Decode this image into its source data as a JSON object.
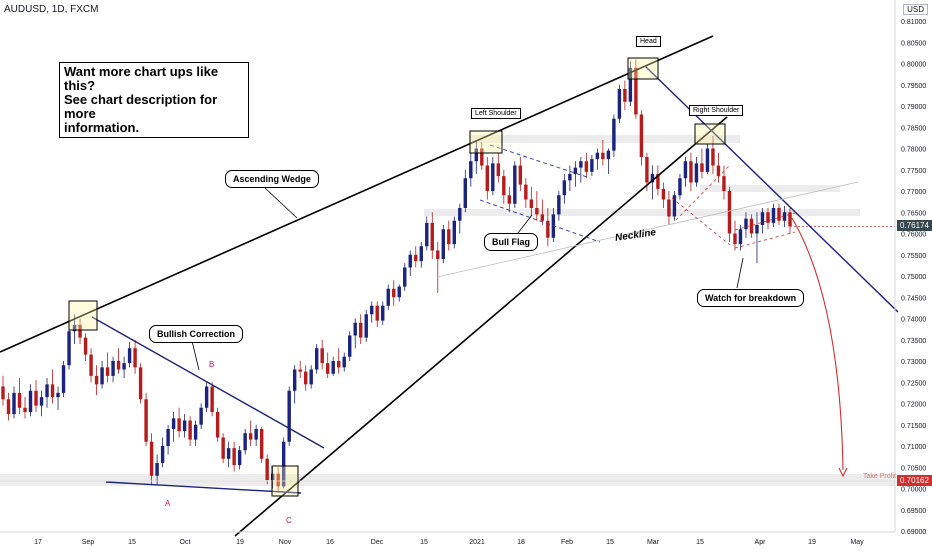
{
  "header": {
    "symbol": "AUDUSD, 1D, FXCM",
    "currency": "USD"
  },
  "promo": {
    "line1": "Want more chart ups like this?",
    "line2": "See chart description for more",
    "line3": "information."
  },
  "annotations": {
    "ascending_wedge": "Ascending Wedge",
    "bullish_correction": "Bullish Correction",
    "bull_flag": "Bull Flag",
    "neckline": "Neckline",
    "left_shoulder": "Left Shoulder",
    "head": "Head",
    "right_shoulder": "Right Shoulder",
    "watch": "Watch for breakdown",
    "point_a": "A",
    "point_b": "B",
    "point_c": "C",
    "take_profit": "Take Profit"
  },
  "price_tags": {
    "current": "0.76174",
    "target": "0.70162"
  },
  "colors": {
    "bull": "#1a237e",
    "bear": "#b71c1c",
    "wedge": "#000000",
    "trend": "#1a237e",
    "projection": "#d32f2f"
  },
  "chart_data": {
    "type": "candlestick",
    "y_axis": {
      "min": 0.69,
      "max": 0.81,
      "ticks": [
        "0.81000",
        "0.80500",
        "0.80000",
        "0.79500",
        "0.79000",
        "0.78500",
        "0.78000",
        "0.77500",
        "0.77000",
        "0.76500",
        "0.76000",
        "0.75500",
        "0.75000",
        "0.74500",
        "0.74000",
        "0.73500",
        "0.73000",
        "0.72500",
        "0.72000",
        "0.71500",
        "0.71000",
        "0.70500",
        "0.70000",
        "0.69500",
        "0.69000"
      ]
    },
    "x_ticks": [
      {
        "label": "17",
        "x": 38
      },
      {
        "label": "Sep",
        "x": 88
      },
      {
        "label": "15",
        "x": 132
      },
      {
        "label": "Oct",
        "x": 185
      },
      {
        "label": "19",
        "x": 240
      },
      {
        "label": "Nov",
        "x": 285
      },
      {
        "label": "16",
        "x": 330
      },
      {
        "label": "Dec",
        "x": 377
      },
      {
        "label": "15",
        "x": 424
      },
      {
        "label": "2021",
        "x": 477
      },
      {
        "label": "18",
        "x": 521
      },
      {
        "label": "Feb",
        "x": 567
      },
      {
        "label": "15",
        "x": 610
      },
      {
        "label": "Mar",
        "x": 653
      },
      {
        "label": "15",
        "x": 700
      },
      {
        "label": "Apr",
        "x": 760
      },
      {
        "label": "19",
        "x": 812
      },
      {
        "label": "May",
        "x": 857
      }
    ],
    "candles": [
      {
        "o": 0.724,
        "h": 0.7265,
        "l": 0.7195,
        "c": 0.721
      },
      {
        "o": 0.721,
        "h": 0.7225,
        "l": 0.716,
        "c": 0.7175
      },
      {
        "o": 0.7175,
        "h": 0.724,
        "l": 0.7165,
        "c": 0.7225
      },
      {
        "o": 0.7225,
        "h": 0.726,
        "l": 0.7175,
        "c": 0.719
      },
      {
        "o": 0.719,
        "h": 0.7215,
        "l": 0.7165,
        "c": 0.718
      },
      {
        "o": 0.718,
        "h": 0.7245,
        "l": 0.717,
        "c": 0.723
      },
      {
        "o": 0.723,
        "h": 0.7255,
        "l": 0.718,
        "c": 0.7195
      },
      {
        "o": 0.7195,
        "h": 0.723,
        "l": 0.717,
        "c": 0.7215
      },
      {
        "o": 0.7215,
        "h": 0.726,
        "l": 0.719,
        "c": 0.7245
      },
      {
        "o": 0.7245,
        "h": 0.728,
        "l": 0.72,
        "c": 0.7215
      },
      {
        "o": 0.7215,
        "h": 0.724,
        "l": 0.7185,
        "c": 0.7225
      },
      {
        "o": 0.7225,
        "h": 0.73,
        "l": 0.7215,
        "c": 0.729
      },
      {
        "o": 0.729,
        "h": 0.738,
        "l": 0.728,
        "c": 0.737
      },
      {
        "o": 0.737,
        "h": 0.741,
        "l": 0.734,
        "c": 0.7385
      },
      {
        "o": 0.7385,
        "h": 0.74,
        "l": 0.734,
        "c": 0.7355
      },
      {
        "o": 0.7355,
        "h": 0.7365,
        "l": 0.73,
        "c": 0.7315
      },
      {
        "o": 0.7315,
        "h": 0.733,
        "l": 0.725,
        "c": 0.7265
      },
      {
        "o": 0.7265,
        "h": 0.729,
        "l": 0.722,
        "c": 0.7245
      },
      {
        "o": 0.7245,
        "h": 0.73,
        "l": 0.7235,
        "c": 0.7285
      },
      {
        "o": 0.7285,
        "h": 0.732,
        "l": 0.725,
        "c": 0.7265
      },
      {
        "o": 0.7265,
        "h": 0.731,
        "l": 0.725,
        "c": 0.73
      },
      {
        "o": 0.73,
        "h": 0.733,
        "l": 0.727,
        "c": 0.728
      },
      {
        "o": 0.728,
        "h": 0.731,
        "l": 0.726,
        "c": 0.7295
      },
      {
        "o": 0.7295,
        "h": 0.7345,
        "l": 0.7285,
        "c": 0.733
      },
      {
        "o": 0.733,
        "h": 0.735,
        "l": 0.727,
        "c": 0.7285
      },
      {
        "o": 0.7285,
        "h": 0.7295,
        "l": 0.72,
        "c": 0.721
      },
      {
        "o": 0.721,
        "h": 0.7225,
        "l": 0.71,
        "c": 0.711
      },
      {
        "o": 0.711,
        "h": 0.713,
        "l": 0.701,
        "c": 0.703
      },
      {
        "o": 0.703,
        "h": 0.708,
        "l": 0.701,
        "c": 0.706
      },
      {
        "o": 0.706,
        "h": 0.712,
        "l": 0.705,
        "c": 0.71
      },
      {
        "o": 0.71,
        "h": 0.715,
        "l": 0.708,
        "c": 0.714
      },
      {
        "o": 0.714,
        "h": 0.718,
        "l": 0.711,
        "c": 0.7165
      },
      {
        "o": 0.7165,
        "h": 0.719,
        "l": 0.712,
        "c": 0.7135
      },
      {
        "o": 0.7135,
        "h": 0.7175,
        "l": 0.712,
        "c": 0.716
      },
      {
        "o": 0.716,
        "h": 0.717,
        "l": 0.71,
        "c": 0.7115
      },
      {
        "o": 0.7115,
        "h": 0.716,
        "l": 0.71,
        "c": 0.715
      },
      {
        "o": 0.715,
        "h": 0.72,
        "l": 0.714,
        "c": 0.719
      },
      {
        "o": 0.719,
        "h": 0.725,
        "l": 0.718,
        "c": 0.724
      },
      {
        "o": 0.724,
        "h": 0.725,
        "l": 0.717,
        "c": 0.718
      },
      {
        "o": 0.718,
        "h": 0.719,
        "l": 0.711,
        "c": 0.712
      },
      {
        "o": 0.712,
        "h": 0.713,
        "l": 0.706,
        "c": 0.707
      },
      {
        "o": 0.707,
        "h": 0.711,
        "l": 0.705,
        "c": 0.7095
      },
      {
        "o": 0.7095,
        "h": 0.711,
        "l": 0.704,
        "c": 0.7055
      },
      {
        "o": 0.7055,
        "h": 0.71,
        "l": 0.7045,
        "c": 0.709
      },
      {
        "o": 0.709,
        "h": 0.714,
        "l": 0.708,
        "c": 0.713
      },
      {
        "o": 0.713,
        "h": 0.716,
        "l": 0.71,
        "c": 0.7115
      },
      {
        "o": 0.7115,
        "h": 0.715,
        "l": 0.71,
        "c": 0.714
      },
      {
        "o": 0.714,
        "h": 0.7145,
        "l": 0.706,
        "c": 0.707
      },
      {
        "o": 0.707,
        "h": 0.708,
        "l": 0.701,
        "c": 0.702
      },
      {
        "o": 0.702,
        "h": 0.705,
        "l": 0.7,
        "c": 0.7035
      },
      {
        "o": 0.7035,
        "h": 0.705,
        "l": 0.699,
        "c": 0.7005
      },
      {
        "o": 0.7005,
        "h": 0.712,
        "l": 0.7,
        "c": 0.711
      },
      {
        "o": 0.711,
        "h": 0.724,
        "l": 0.71,
        "c": 0.723
      },
      {
        "o": 0.723,
        "h": 0.729,
        "l": 0.72,
        "c": 0.728
      },
      {
        "o": 0.728,
        "h": 0.73,
        "l": 0.726,
        "c": 0.7275
      },
      {
        "o": 0.7275,
        "h": 0.729,
        "l": 0.723,
        "c": 0.7245
      },
      {
        "o": 0.7245,
        "h": 0.729,
        "l": 0.7235,
        "c": 0.728
      },
      {
        "o": 0.728,
        "h": 0.734,
        "l": 0.727,
        "c": 0.733
      },
      {
        "o": 0.733,
        "h": 0.735,
        "l": 0.728,
        "c": 0.7295
      },
      {
        "o": 0.7295,
        "h": 0.732,
        "l": 0.726,
        "c": 0.727
      },
      {
        "o": 0.727,
        "h": 0.731,
        "l": 0.7265,
        "c": 0.73
      },
      {
        "o": 0.73,
        "h": 0.733,
        "l": 0.727,
        "c": 0.7285
      },
      {
        "o": 0.7285,
        "h": 0.732,
        "l": 0.7275,
        "c": 0.731
      },
      {
        "o": 0.731,
        "h": 0.737,
        "l": 0.73,
        "c": 0.736
      },
      {
        "o": 0.736,
        "h": 0.74,
        "l": 0.733,
        "c": 0.739
      },
      {
        "o": 0.739,
        "h": 0.741,
        "l": 0.734,
        "c": 0.7355
      },
      {
        "o": 0.7355,
        "h": 0.742,
        "l": 0.7345,
        "c": 0.741
      },
      {
        "o": 0.741,
        "h": 0.744,
        "l": 0.739,
        "c": 0.743
      },
      {
        "o": 0.743,
        "h": 0.744,
        "l": 0.738,
        "c": 0.7395
      },
      {
        "o": 0.7395,
        "h": 0.744,
        "l": 0.7385,
        "c": 0.743
      },
      {
        "o": 0.743,
        "h": 0.748,
        "l": 0.742,
        "c": 0.747
      },
      {
        "o": 0.747,
        "h": 0.749,
        "l": 0.743,
        "c": 0.745
      },
      {
        "o": 0.745,
        "h": 0.748,
        "l": 0.744,
        "c": 0.7475
      },
      {
        "o": 0.7475,
        "h": 0.753,
        "l": 0.7465,
        "c": 0.752
      },
      {
        "o": 0.752,
        "h": 0.756,
        "l": 0.75,
        "c": 0.755
      },
      {
        "o": 0.755,
        "h": 0.757,
        "l": 0.752,
        "c": 0.7535
      },
      {
        "o": 0.7535,
        "h": 0.758,
        "l": 0.752,
        "c": 0.757
      },
      {
        "o": 0.757,
        "h": 0.764,
        "l": 0.756,
        "c": 0.7625
      },
      {
        "o": 0.7625,
        "h": 0.765,
        "l": 0.754,
        "c": 0.756
      },
      {
        "o": 0.756,
        "h": 0.758,
        "l": 0.746,
        "c": 0.754
      },
      {
        "o": 0.754,
        "h": 0.762,
        "l": 0.753,
        "c": 0.761
      },
      {
        "o": 0.761,
        "h": 0.763,
        "l": 0.756,
        "c": 0.7575
      },
      {
        "o": 0.7575,
        "h": 0.764,
        "l": 0.7565,
        "c": 0.763
      },
      {
        "o": 0.763,
        "h": 0.767,
        "l": 0.76,
        "c": 0.766
      },
      {
        "o": 0.766,
        "h": 0.775,
        "l": 0.765,
        "c": 0.773
      },
      {
        "o": 0.773,
        "h": 0.779,
        "l": 0.771,
        "c": 0.777
      },
      {
        "o": 0.777,
        "h": 0.782,
        "l": 0.774,
        "c": 0.78
      },
      {
        "o": 0.78,
        "h": 0.7815,
        "l": 0.775,
        "c": 0.776
      },
      {
        "o": 0.776,
        "h": 0.778,
        "l": 0.768,
        "c": 0.77
      },
      {
        "o": 0.77,
        "h": 0.778,
        "l": 0.769,
        "c": 0.7765
      },
      {
        "o": 0.7765,
        "h": 0.779,
        "l": 0.772,
        "c": 0.7735
      },
      {
        "o": 0.7735,
        "h": 0.775,
        "l": 0.767,
        "c": 0.769
      },
      {
        "o": 0.769,
        "h": 0.771,
        "l": 0.765,
        "c": 0.767
      },
      {
        "o": 0.767,
        "h": 0.777,
        "l": 0.766,
        "c": 0.776
      },
      {
        "o": 0.776,
        "h": 0.778,
        "l": 0.77,
        "c": 0.7715
      },
      {
        "o": 0.7715,
        "h": 0.773,
        "l": 0.766,
        "c": 0.768
      },
      {
        "o": 0.768,
        "h": 0.771,
        "l": 0.764,
        "c": 0.766
      },
      {
        "o": 0.766,
        "h": 0.77,
        "l": 0.763,
        "c": 0.7645
      },
      {
        "o": 0.7645,
        "h": 0.768,
        "l": 0.762,
        "c": 0.763
      },
      {
        "o": 0.763,
        "h": 0.766,
        "l": 0.757,
        "c": 0.759
      },
      {
        "o": 0.759,
        "h": 0.766,
        "l": 0.758,
        "c": 0.7645
      },
      {
        "o": 0.7645,
        "h": 0.77,
        "l": 0.763,
        "c": 0.769
      },
      {
        "o": 0.769,
        "h": 0.774,
        "l": 0.767,
        "c": 0.7725
      },
      {
        "o": 0.7725,
        "h": 0.776,
        "l": 0.77,
        "c": 0.774
      },
      {
        "o": 0.774,
        "h": 0.777,
        "l": 0.771,
        "c": 0.7755
      },
      {
        "o": 0.7755,
        "h": 0.778,
        "l": 0.772,
        "c": 0.777
      },
      {
        "o": 0.777,
        "h": 0.779,
        "l": 0.773,
        "c": 0.7745
      },
      {
        "o": 0.7745,
        "h": 0.7785,
        "l": 0.7735,
        "c": 0.7775
      },
      {
        "o": 0.7775,
        "h": 0.78,
        "l": 0.775,
        "c": 0.779
      },
      {
        "o": 0.779,
        "h": 0.782,
        "l": 0.776,
        "c": 0.7775
      },
      {
        "o": 0.7775,
        "h": 0.78,
        "l": 0.774,
        "c": 0.7795
      },
      {
        "o": 0.7795,
        "h": 0.788,
        "l": 0.778,
        "c": 0.787
      },
      {
        "o": 0.787,
        "h": 0.795,
        "l": 0.786,
        "c": 0.794
      },
      {
        "o": 0.794,
        "h": 0.796,
        "l": 0.789,
        "c": 0.791
      },
      {
        "o": 0.791,
        "h": 0.8005,
        "l": 0.79,
        "c": 0.799
      },
      {
        "o": 0.799,
        "h": 0.801,
        "l": 0.787,
        "c": 0.788
      },
      {
        "o": 0.788,
        "h": 0.789,
        "l": 0.776,
        "c": 0.778
      },
      {
        "o": 0.778,
        "h": 0.779,
        "l": 0.77,
        "c": 0.772
      },
      {
        "o": 0.772,
        "h": 0.776,
        "l": 0.768,
        "c": 0.774
      },
      {
        "o": 0.774,
        "h": 0.776,
        "l": 0.769,
        "c": 0.7705
      },
      {
        "o": 0.7705,
        "h": 0.772,
        "l": 0.766,
        "c": 0.768
      },
      {
        "o": 0.768,
        "h": 0.77,
        "l": 0.762,
        "c": 0.764
      },
      {
        "o": 0.764,
        "h": 0.77,
        "l": 0.763,
        "c": 0.769
      },
      {
        "o": 0.769,
        "h": 0.774,
        "l": 0.768,
        "c": 0.773
      },
      {
        "o": 0.773,
        "h": 0.778,
        "l": 0.771,
        "c": 0.777
      },
      {
        "o": 0.777,
        "h": 0.779,
        "l": 0.77,
        "c": 0.772
      },
      {
        "o": 0.772,
        "h": 0.778,
        "l": 0.771,
        "c": 0.7765
      },
      {
        "o": 0.7765,
        "h": 0.78,
        "l": 0.773,
        "c": 0.7745
      },
      {
        "o": 0.7745,
        "h": 0.781,
        "l": 0.774,
        "c": 0.78
      },
      {
        "o": 0.78,
        "h": 0.783,
        "l": 0.774,
        "c": 0.776
      },
      {
        "o": 0.776,
        "h": 0.779,
        "l": 0.772,
        "c": 0.7735
      },
      {
        "o": 0.7735,
        "h": 0.776,
        "l": 0.768,
        "c": 0.77
      },
      {
        "o": 0.77,
        "h": 0.771,
        "l": 0.758,
        "c": 0.76
      },
      {
        "o": 0.76,
        "h": 0.763,
        "l": 0.756,
        "c": 0.7575
      },
      {
        "o": 0.7575,
        "h": 0.762,
        "l": 0.756,
        "c": 0.761
      },
      {
        "o": 0.761,
        "h": 0.765,
        "l": 0.759,
        "c": 0.7635
      },
      {
        "o": 0.7635,
        "h": 0.7645,
        "l": 0.759,
        "c": 0.76
      },
      {
        "o": 0.76,
        "h": 0.765,
        "l": 0.753,
        "c": 0.762
      },
      {
        "o": 0.762,
        "h": 0.766,
        "l": 0.76,
        "c": 0.765
      },
      {
        "o": 0.765,
        "h": 0.766,
        "l": 0.761,
        "c": 0.7625
      },
      {
        "o": 0.7625,
        "h": 0.767,
        "l": 0.7615,
        "c": 0.766
      },
      {
        "o": 0.766,
        "h": 0.767,
        "l": 0.762,
        "c": 0.763
      },
      {
        "o": 0.763,
        "h": 0.7665,
        "l": 0.7615,
        "c": 0.765
      },
      {
        "o": 0.765,
        "h": 0.766,
        "l": 0.76,
        "c": 0.7617
      }
    ]
  }
}
